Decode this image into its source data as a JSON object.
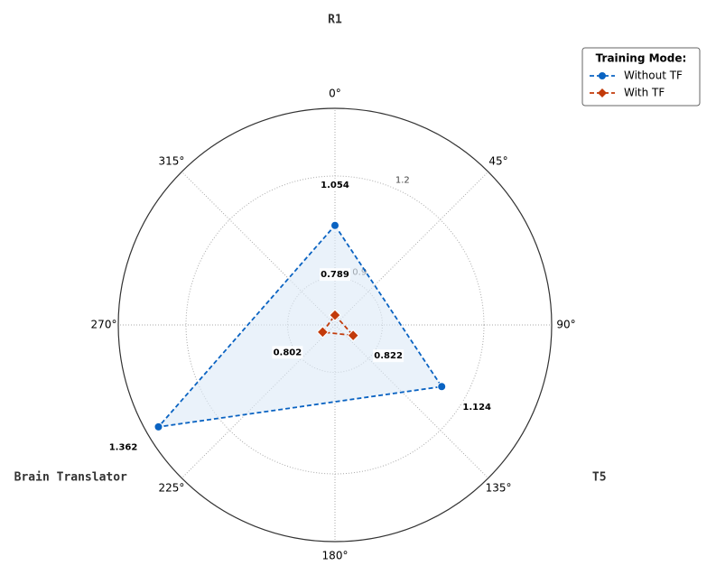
{
  "chart_data": {
    "type": "radar",
    "categories": [
      "R1",
      "T5",
      "Brain Translator"
    ],
    "rlim": [
      0.76,
      1.4
    ],
    "rticks": [
      0.9,
      1.2
    ],
    "angle_ticks": [
      {
        "value": 0,
        "label": "0°"
      },
      {
        "value": 45,
        "label": "45°"
      },
      {
        "value": 90,
        "label": "90°"
      },
      {
        "value": 135,
        "label": "135°"
      },
      {
        "value": 180,
        "label": "180°"
      },
      {
        "value": 225,
        "label": "225°"
      },
      {
        "value": 270,
        "label": "270°"
      },
      {
        "value": 315,
        "label": "315°"
      }
    ],
    "legend_title": "Training Mode:",
    "legend_loc": "upper right",
    "series": [
      {
        "name": "Without TF",
        "color": "#0a63c2",
        "marker": "circle",
        "fill": "#dce9f7",
        "values": [
          1.054,
          1.124,
          1.362
        ]
      },
      {
        "name": "With TF",
        "color": "#c23a0a",
        "marker": "diamond",
        "values": [
          0.789,
          0.822,
          0.802
        ]
      }
    ]
  }
}
